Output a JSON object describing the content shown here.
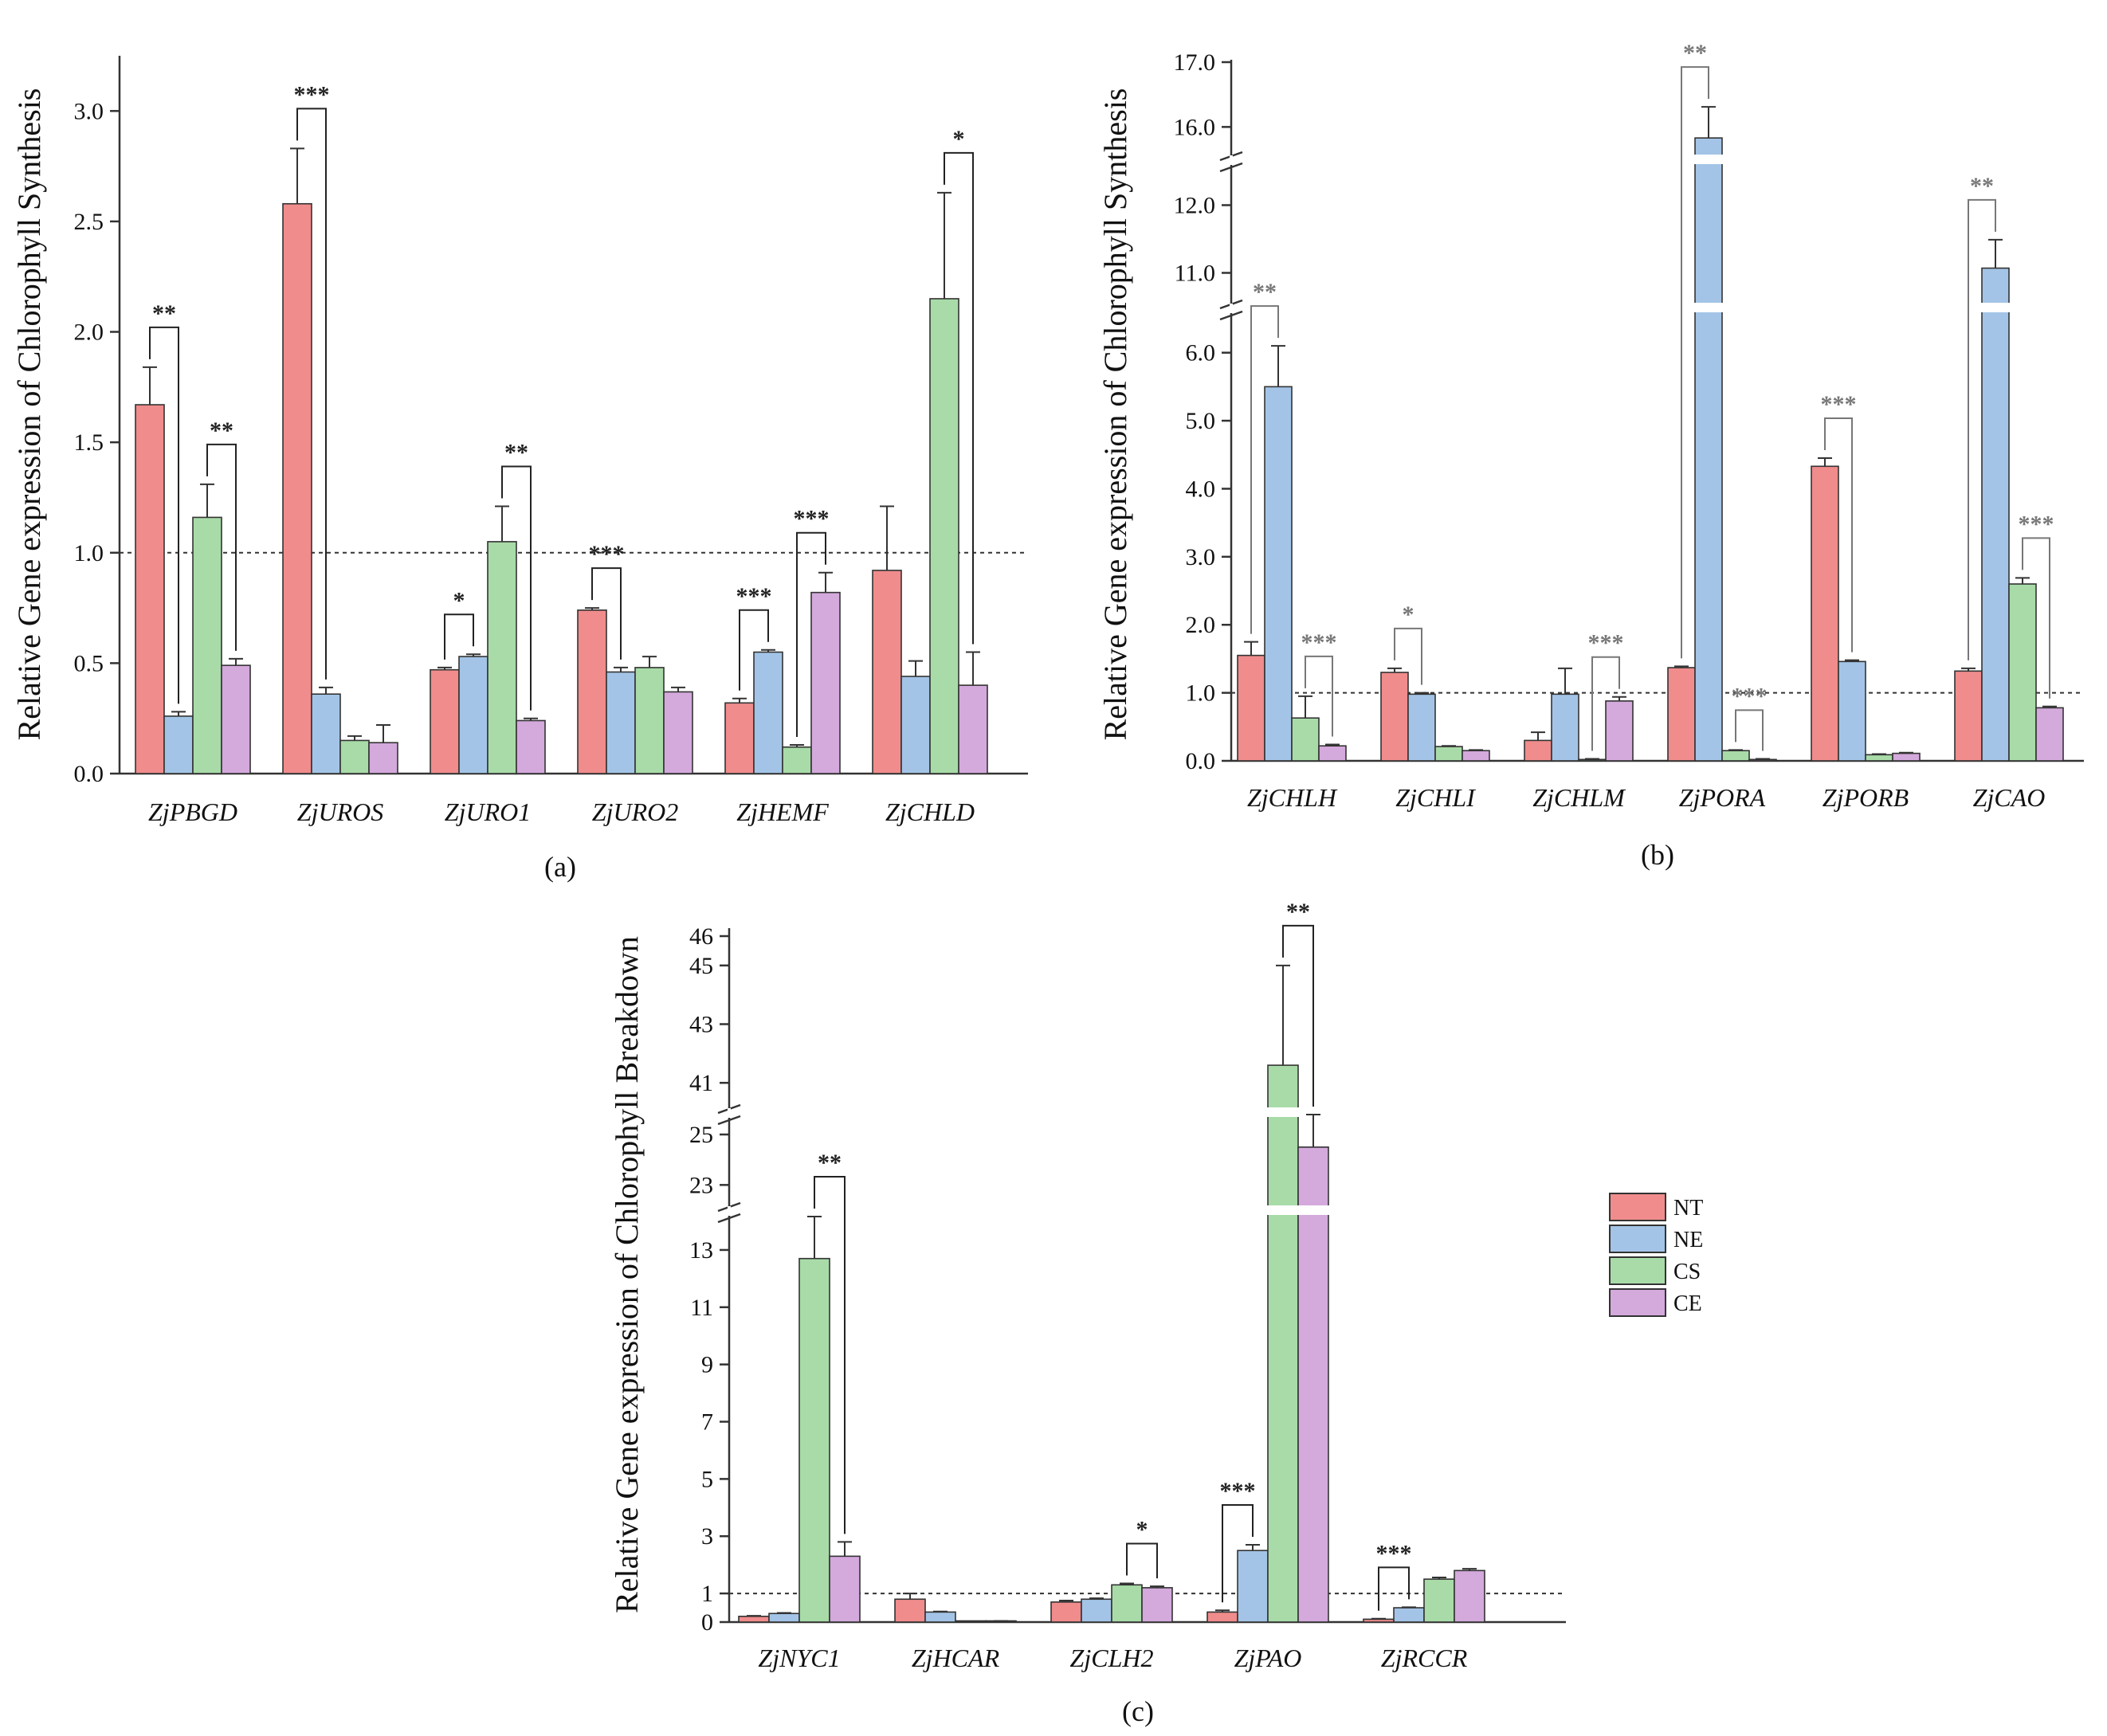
{
  "colors": {
    "NT": "#f08c8c",
    "NE": "#a3c4e6",
    "CS": "#a8dba8",
    "CE": "#d4a9dc"
  },
  "legend": [
    "NT",
    "NE",
    "CS",
    "CE"
  ],
  "chart_data": [
    {
      "type": "bar",
      "panel_label": "(a)",
      "ylabel": "Relative Gene expression of Chlorophyll Synthesis",
      "categories": [
        "ZjPBGD",
        "ZjUROS",
        "ZjURO1",
        "ZjURO2",
        "ZjHEMF",
        "ZjCHLD"
      ],
      "ylim": [
        0,
        3.25
      ],
      "yticks": [
        "0.0",
        "0.5",
        "1.0",
        "1.5",
        "2.0",
        "2.5",
        "3.0"
      ],
      "reference_line": 1.0,
      "series": [
        {
          "name": "NT",
          "values": [
            1.67,
            2.58,
            0.47,
            0.74,
            0.32,
            0.92
          ],
          "errors": [
            0.17,
            0.25,
            0.01,
            0.01,
            0.02,
            0.29
          ]
        },
        {
          "name": "NE",
          "values": [
            0.26,
            0.36,
            0.53,
            0.46,
            0.55,
            0.44
          ],
          "errors": [
            0.02,
            0.03,
            0.01,
            0.02,
            0.01,
            0.07
          ]
        },
        {
          "name": "CS",
          "values": [
            1.16,
            0.15,
            1.05,
            0.48,
            0.12,
            2.15
          ],
          "errors": [
            0.15,
            0.02,
            0.16,
            0.05,
            0.01,
            0.48
          ]
        },
        {
          "name": "CE",
          "values": [
            0.49,
            0.14,
            0.24,
            0.37,
            0.82,
            0.4
          ],
          "errors": [
            0.03,
            0.08,
            0.01,
            0.02,
            0.09,
            0.15
          ]
        }
      ],
      "significance": [
        {
          "group": 0,
          "from": 0,
          "to": 1,
          "label": "**"
        },
        {
          "group": 0,
          "from": 2,
          "to": 3,
          "label": "**"
        },
        {
          "group": 1,
          "from": 0,
          "to": 1,
          "label": "***"
        },
        {
          "group": 2,
          "from": 0,
          "to": 1,
          "label": "*"
        },
        {
          "group": 2,
          "from": 2,
          "to": 3,
          "label": "**"
        },
        {
          "group": 3,
          "from": 0,
          "to": 1,
          "label": "***"
        },
        {
          "group": 4,
          "from": 0,
          "to": 1,
          "label": "***"
        },
        {
          "group": 4,
          "from": 2,
          "to": 3,
          "label": "***"
        },
        {
          "group": 5,
          "from": 2,
          "to": 3,
          "label": "*"
        }
      ]
    },
    {
      "type": "bar",
      "panel_label": "(b)",
      "ylabel": "Relative Gene expression of Chlorophyll Synthesis",
      "categories": [
        "ZjCHLH",
        "ZjCHLI",
        "ZjCHLM",
        "ZjPORA",
        "ZjPORB",
        "ZjCAO"
      ],
      "ylim": [
        0,
        17
      ],
      "axis_breaks": [
        [
          6.5,
          10.5
        ],
        [
          12.5,
          15.5
        ]
      ],
      "yticks": [
        "0.0",
        "1.0",
        "2.0",
        "3.0",
        "4.0",
        "5.0",
        "6.0",
        "11.0",
        "12.0",
        "16.0",
        "17.0"
      ],
      "reference_line": 1.0,
      "series": [
        {
          "name": "NT",
          "values": [
            1.55,
            1.3,
            0.3,
            1.37,
            4.33,
            1.32
          ],
          "errors": [
            0.2,
            0.06,
            0.12,
            0.02,
            0.12,
            0.04
          ]
        },
        {
          "name": "NE",
          "values": [
            5.5,
            0.98,
            0.98,
            15.83,
            1.46,
            11.07
          ],
          "errors": [
            0.6,
            0.02,
            0.38,
            0.48,
            0.02,
            0.42
          ]
        },
        {
          "name": "CS",
          "values": [
            0.63,
            0.21,
            0.02,
            0.15,
            0.09,
            2.6
          ],
          "errors": [
            0.32,
            0.01,
            0.01,
            0.01,
            0.01,
            0.09
          ]
        },
        {
          "name": "CE",
          "values": [
            0.22,
            0.15,
            0.88,
            0.02,
            0.11,
            0.78
          ],
          "errors": [
            0.02,
            0.01,
            0.06,
            0.01,
            0.01,
            0.02
          ]
        }
      ],
      "significance": [
        {
          "group": 0,
          "from": 0,
          "to": 1,
          "label": "**"
        },
        {
          "group": 0,
          "from": 2,
          "to": 3,
          "label": "***"
        },
        {
          "group": 1,
          "from": 0,
          "to": 1,
          "label": "*"
        },
        {
          "group": 2,
          "from": 2,
          "to": 3,
          "label": "***"
        },
        {
          "group": 3,
          "from": 0,
          "to": 1,
          "label": "**"
        },
        {
          "group": 3,
          "from": 2,
          "to": 3,
          "label": "***"
        },
        {
          "group": 4,
          "from": 0,
          "to": 1,
          "label": "***"
        },
        {
          "group": 5,
          "from": 0,
          "to": 1,
          "label": "**"
        },
        {
          "group": 5,
          "from": 2,
          "to": 3,
          "label": "***"
        }
      ]
    },
    {
      "type": "bar",
      "panel_label": "(c)",
      "ylabel": "Relative Gene expression of Chlorophyll Breakdown",
      "categories": [
        "ZjNYC1",
        "ZjHCAR",
        "ZjCLH2",
        "ZjPAO",
        "ZjRCCR"
      ],
      "ylim": [
        0,
        46
      ],
      "axis_breaks": [
        [
          14.0,
          22.0
        ],
        [
          25.6,
          40.0
        ]
      ],
      "yticks": [
        "0",
        "1",
        "3",
        "5",
        "7",
        "9",
        "11",
        "13",
        "23",
        "25",
        "41",
        "43",
        "45",
        "46"
      ],
      "reference_line": 1.0,
      "series": [
        {
          "name": "NT",
          "values": [
            0.2,
            0.8,
            0.7,
            0.35,
            0.1
          ],
          "errors": [
            0.02,
            0.2,
            0.05,
            0.06,
            0.02
          ]
        },
        {
          "name": "NE",
          "values": [
            0.3,
            0.35,
            0.8,
            2.5,
            0.5
          ],
          "errors": [
            0.02,
            0.02,
            0.03,
            0.2,
            0.02
          ]
        },
        {
          "name": "CS",
          "values": [
            12.7,
            0.0,
            1.3,
            41.6,
            1.5
          ],
          "errors": [
            1.4,
            0.0,
            0.05,
            3.4,
            0.06
          ]
        },
        {
          "name": "CE",
          "values": [
            2.3,
            0.03,
            1.2,
            24.5,
            1.8
          ],
          "errors": [
            0.5,
            0.01,
            0.05,
            1.4,
            0.06
          ]
        }
      ],
      "significance": [
        {
          "group": 0,
          "from": 2,
          "to": 3,
          "label": "**"
        },
        {
          "group": 2,
          "from": 2,
          "to": 3,
          "label": "*"
        },
        {
          "group": 3,
          "from": 0,
          "to": 1,
          "label": "***"
        },
        {
          "group": 3,
          "from": 2,
          "to": 3,
          "label": "**"
        },
        {
          "group": 4,
          "from": 0,
          "to": 1,
          "label": "***"
        }
      ]
    }
  ]
}
